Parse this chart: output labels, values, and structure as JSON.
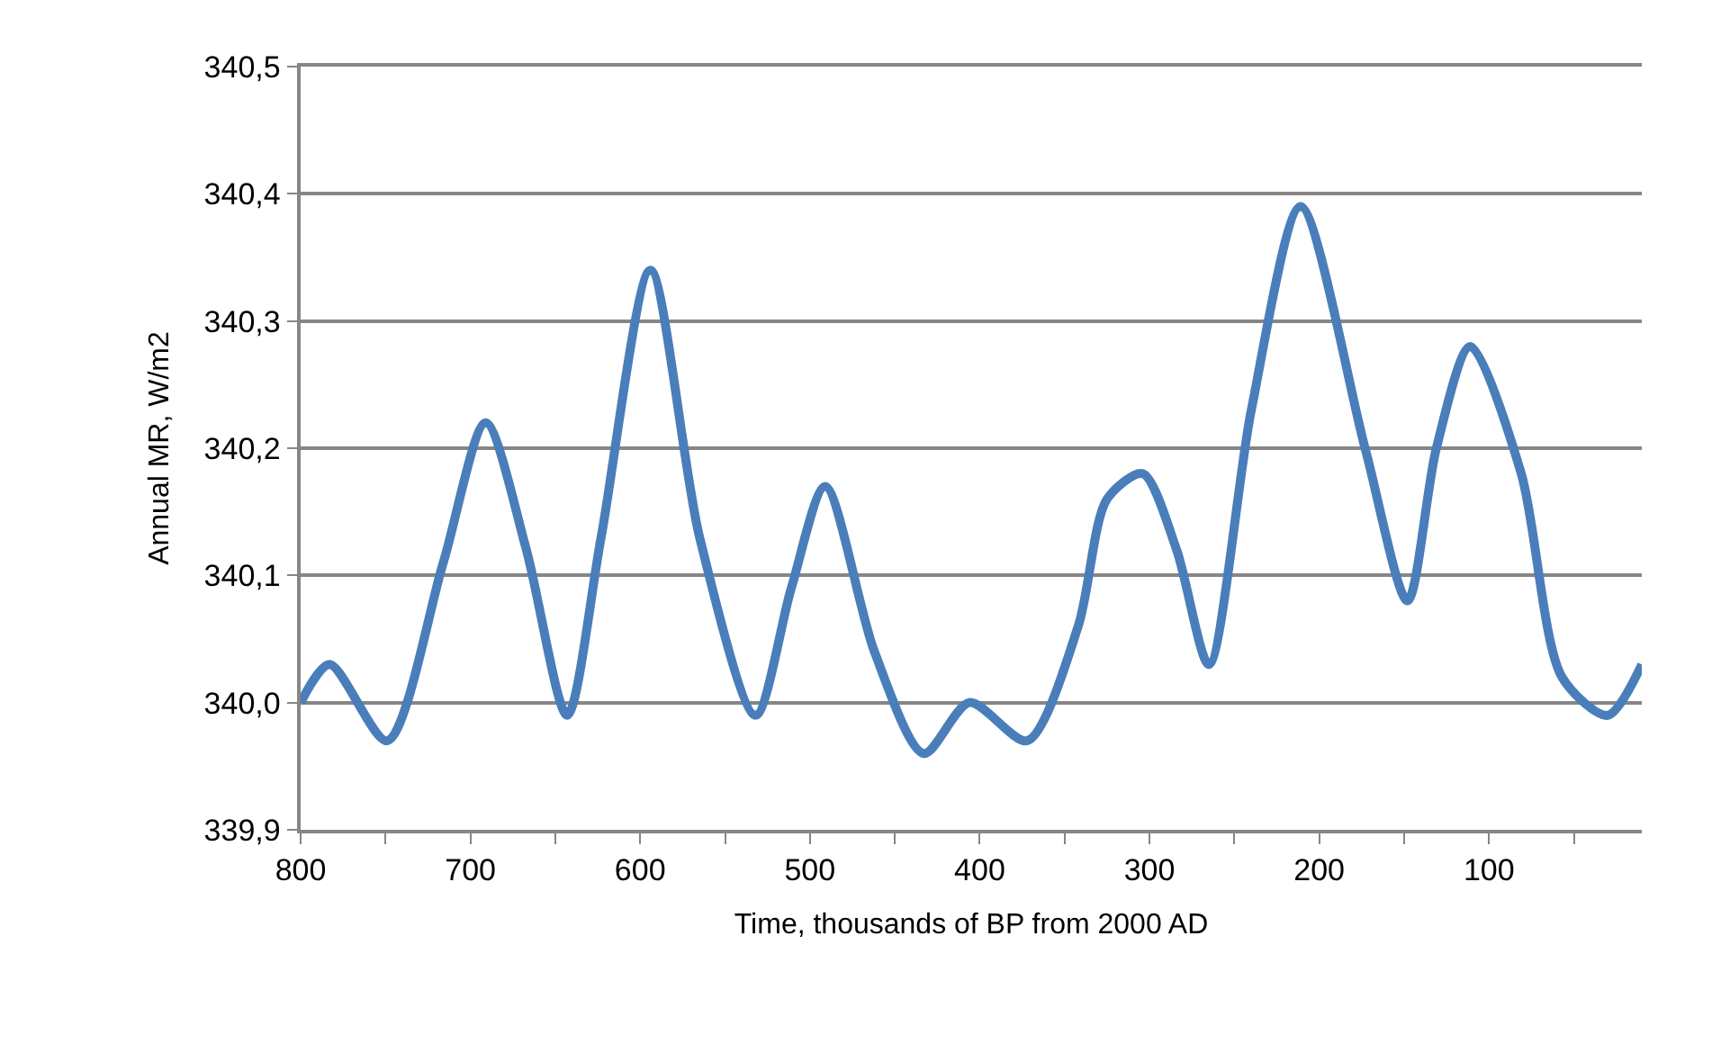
{
  "chart_data": {
    "type": "line",
    "xlabel": "Time, thousands of BP from 2000 AD",
    "ylabel": "Annual MR, W/m2",
    "x": [
      800,
      783,
      749,
      716,
      691,
      667,
      643,
      623,
      594,
      565,
      532,
      511,
      491,
      462,
      433,
      406,
      372,
      342,
      325,
      304,
      284,
      265,
      240,
      211,
      173,
      148,
      131,
      111,
      81,
      57,
      30,
      10
    ],
    "series": [
      {
        "color": "#4a7ebb",
        "values": [
          340.0,
          340.03,
          339.97,
          340.11,
          340.22,
          340.12,
          339.99,
          340.13,
          340.34,
          340.13,
          339.99,
          340.09,
          340.17,
          340.04,
          339.96,
          340.0,
          339.97,
          340.06,
          340.16,
          340.18,
          340.12,
          340.03,
          340.23,
          340.39,
          340.2,
          340.08,
          340.2,
          340.28,
          340.18,
          340.02,
          339.99,
          340.03
        ]
      }
    ],
    "xlim": [
      800,
      10
    ],
    "ylim": [
      339.9,
      340.5
    ],
    "xticks": [
      800,
      {
        "value": 750,
        "label": null
      },
      700,
      {
        "value": 650,
        "label": null
      },
      600,
      {
        "value": 550,
        "label": null
      },
      500,
      {
        "value": 450,
        "label": null
      },
      400,
      {
        "value": 350,
        "label": null
      },
      300,
      {
        "value": 250,
        "label": null
      },
      200,
      {
        "value": 150,
        "label": null
      },
      100,
      {
        "value": 50,
        "label": null
      }
    ],
    "yticks": [
      {
        "value": 339.9,
        "label": "339,9"
      },
      {
        "value": 340.0,
        "label": "340,0"
      },
      {
        "value": 340.1,
        "label": "340,1"
      },
      {
        "value": 340.2,
        "label": "340,2"
      },
      {
        "value": 340.3,
        "label": "340,3"
      },
      {
        "value": 340.4,
        "label": "340,4"
      },
      {
        "value": 340.5,
        "label": "340,5"
      }
    ],
    "grid": "y",
    "marker": "none",
    "line_style": "solid"
  }
}
